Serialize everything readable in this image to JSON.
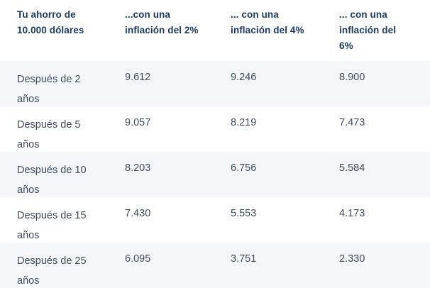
{
  "colors": {
    "header_text": "#1a3a66",
    "body_text": "#3d4d5f",
    "row_alt_bg": "#f4f6f9",
    "page_bg": "#ffffff"
  },
  "table": {
    "headers": [
      "Tu ahorro de 10.000 dólares",
      "...con una inflación del 2%",
      "... con una inflación del 4%",
      "... con una inflación del 6%"
    ],
    "rows": [
      {
        "label": "Después de 2 años",
        "cells": [
          "9.612",
          "9.246",
          "8.900"
        ]
      },
      {
        "label": "Después de 5 años",
        "cells": [
          "9.057",
          "8.219",
          "7.473"
        ]
      },
      {
        "label": "Después de 10 años",
        "cells": [
          "8.203",
          "6.756",
          "5.584"
        ]
      },
      {
        "label": "Después de 15 años",
        "cells": [
          "7.430",
          "5.553",
          "4.173"
        ]
      },
      {
        "label": "Después de 25 años",
        "cells": [
          "6.095",
          "3.751",
          "2.330"
        ]
      }
    ]
  },
  "chart_data": {
    "type": "table",
    "title": "Tu ahorro de 10.000 dólares",
    "initial_savings": 10000,
    "columns": [
      "Tu ahorro de 10.000 dólares",
      "...con una inflación del 2%",
      "... con una inflación del 4%",
      "... con una inflación del 6%"
    ],
    "inflation_rates_percent": [
      2,
      4,
      6
    ],
    "rows": [
      {
        "label": "Después de 2 años",
        "years": 2,
        "values": [
          9612,
          9246,
          8900
        ]
      },
      {
        "label": "Después de 5 años",
        "years": 5,
        "values": [
          9057,
          8219,
          7473
        ]
      },
      {
        "label": "Después de 10 años",
        "years": 10,
        "values": [
          8203,
          6756,
          5584
        ]
      },
      {
        "label": "Después de 15 años",
        "years": 15,
        "values": [
          7430,
          5553,
          4173
        ]
      },
      {
        "label": "Después de 25 años",
        "years": 25,
        "values": [
          6095,
          3751,
          2330
        ]
      }
    ]
  }
}
